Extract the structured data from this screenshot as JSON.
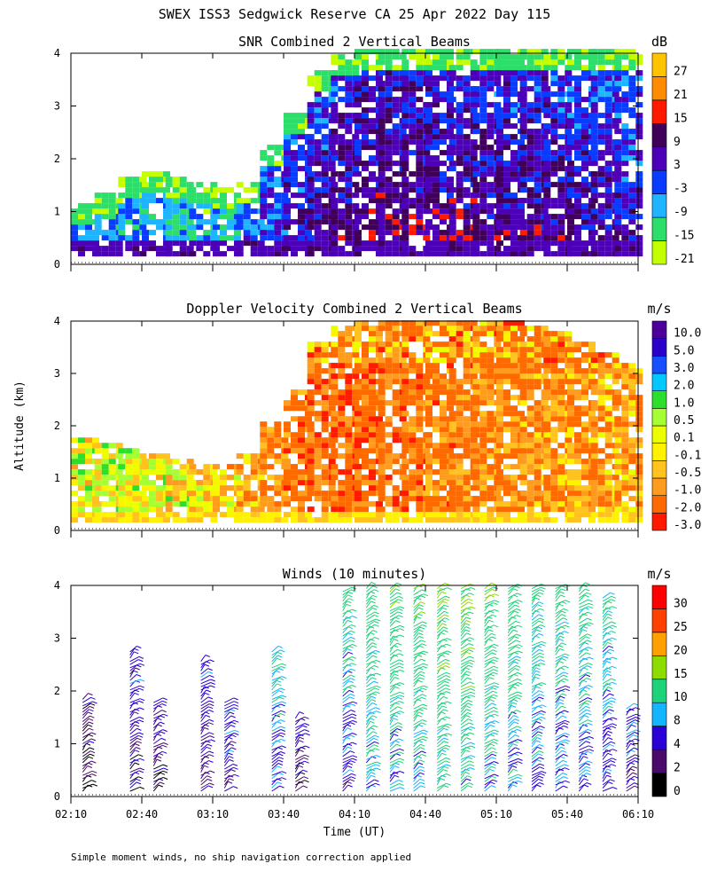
{
  "figure_title": "SWEX ISS3 Sedgwick Reserve CA  25 Apr 2022 Day 115",
  "ylabel": "Altitude (km)",
  "xlabel": "Time (UT)",
  "footnote": "Simple moment winds, no ship navigation correction applied",
  "x_ticks": [
    "02:10",
    "02:40",
    "03:10",
    "03:40",
    "04:10",
    "04:40",
    "05:10",
    "05:40",
    "06:10"
  ],
  "y_ticks": [
    "0",
    "1",
    "2",
    "3",
    "4"
  ],
  "colors": {
    "snr": [
      "#c4ff00",
      "#2ddf6a",
      "#1fb4ff",
      "#0a3cff",
      "#4c00b8",
      "#40005a",
      "#ff1a00",
      "#ff8c00",
      "#ffc400"
    ],
    "doppler": [
      "#ff1a00",
      "#ff6a00",
      "#ff9c1e",
      "#ffc21e",
      "#fff200",
      "#ecff00",
      "#a6ff32",
      "#2ddf2d",
      "#00c8ff",
      "#1450ff",
      "#2a00c8",
      "#4c0099",
      "#3a0040"
    ],
    "winds": [
      "#000000",
      "#4a0a6a",
      "#2a00d4",
      "#14b4ff",
      "#1ed27a",
      "#8cdc00",
      "#ffa000",
      "#ff4000",
      "#ff0000"
    ]
  },
  "chart_data": [
    {
      "type": "heatmap",
      "title": "SNR Combined 2 Vertical Beams",
      "units": "dB",
      "ylim": [
        0,
        4
      ],
      "colorbar_labels": [
        "-21",
        "-15",
        "-9",
        "-3",
        "3",
        "9",
        "15",
        "21",
        "27"
      ],
      "colorbar_values": [
        -21,
        -15,
        -9,
        -3,
        3,
        9,
        15,
        21,
        27
      ],
      "columns": [
        {
          "t": "02:10",
          "top_km": 1.1,
          "mean": -6
        },
        {
          "t": "02:20",
          "top_km": 1.3,
          "mean": -8
        },
        {
          "t": "02:30",
          "top_km": 1.6,
          "mean": -9
        },
        {
          "t": "02:40",
          "top_km": 1.7,
          "mean": -10
        },
        {
          "t": "02:50",
          "top_km": 1.6,
          "mean": -11
        },
        {
          "t": "03:00",
          "top_km": 1.5,
          "mean": -11
        },
        {
          "t": "03:10",
          "top_km": 1.4,
          "mean": -10
        },
        {
          "t": "03:20",
          "top_km": 1.5,
          "mean": -6
        },
        {
          "t": "03:30",
          "top_km": 2.2,
          "mean": -2
        },
        {
          "t": "03:40",
          "top_km": 2.8,
          "mean": 2
        },
        {
          "t": "03:50",
          "top_km": 3.6,
          "mean": 4
        },
        {
          "t": "04:00",
          "top_km": 3.9,
          "mean": 6
        },
        {
          "t": "04:10",
          "top_km": 4.0,
          "mean": 7
        },
        {
          "t": "04:20",
          "top_km": 4.0,
          "mean": 8
        },
        {
          "t": "04:30",
          "top_km": 4.0,
          "mean": 8
        },
        {
          "t": "04:40",
          "top_km": 4.0,
          "mean": 7
        },
        {
          "t": "04:50",
          "top_km": 4.0,
          "mean": 7
        },
        {
          "t": "05:00",
          "top_km": 4.0,
          "mean": 6
        },
        {
          "t": "05:10",
          "top_km": 4.0,
          "mean": 6
        },
        {
          "t": "05:20",
          "top_km": 4.0,
          "mean": 6
        },
        {
          "t": "05:30",
          "top_km": 4.0,
          "mean": 5
        },
        {
          "t": "05:40",
          "top_km": 4.0,
          "mean": 4
        },
        {
          "t": "05:50",
          "top_km": 4.0,
          "mean": 3
        },
        {
          "t": "06:00",
          "top_km": 4.0,
          "mean": 2
        }
      ]
    },
    {
      "type": "heatmap",
      "title": "Doppler Velocity Combined 2 Vertical Beams",
      "units": "m/s",
      "ylim": [
        0,
        4
      ],
      "colorbar_labels": [
        "-3.0",
        "-2.0",
        "-1.0",
        "-0.5",
        "-0.1",
        "0.1",
        "0.5",
        "1.0",
        "2.0",
        "3.0",
        "5.0",
        "10.0"
      ],
      "colorbar_values": [
        -3.0,
        -2.0,
        -1.0,
        -0.5,
        -0.1,
        0.1,
        0.5,
        1.0,
        2.0,
        3.0,
        5.0,
        10.0
      ],
      "columns": [
        {
          "t": "02:10",
          "top_km": 1.7,
          "mean": 0.3
        },
        {
          "t": "02:20",
          "top_km": 1.6,
          "mean": 0.4
        },
        {
          "t": "02:30",
          "top_km": 1.5,
          "mean": 0.4
        },
        {
          "t": "02:40",
          "top_km": 1.4,
          "mean": 0.3
        },
        {
          "t": "02:50",
          "top_km": 1.3,
          "mean": 0.2
        },
        {
          "t": "03:00",
          "top_km": 1.2,
          "mean": 0.0
        },
        {
          "t": "03:10",
          "top_km": 1.2,
          "mean": -0.2
        },
        {
          "t": "03:20",
          "top_km": 1.4,
          "mean": -0.6
        },
        {
          "t": "03:30",
          "top_km": 2.0,
          "mean": -1.0
        },
        {
          "t": "03:40",
          "top_km": 2.6,
          "mean": -1.3
        },
        {
          "t": "03:50",
          "top_km": 3.6,
          "mean": -1.4
        },
        {
          "t": "04:00",
          "top_km": 3.9,
          "mean": -1.5
        },
        {
          "t": "04:10",
          "top_km": 4.0,
          "mean": -1.5
        },
        {
          "t": "04:20",
          "top_km": 4.0,
          "mean": -1.4
        },
        {
          "t": "04:30",
          "top_km": 4.0,
          "mean": -1.3
        },
        {
          "t": "04:40",
          "top_km": 4.0,
          "mean": -1.2
        },
        {
          "t": "04:50",
          "top_km": 4.0,
          "mean": -1.2
        },
        {
          "t": "05:00",
          "top_km": 4.0,
          "mean": -1.0
        },
        {
          "t": "05:10",
          "top_km": 4.0,
          "mean": -1.0
        },
        {
          "t": "05:20",
          "top_km": 3.9,
          "mean": -0.9
        },
        {
          "t": "05:30",
          "top_km": 3.8,
          "mean": -0.8
        },
        {
          "t": "05:40",
          "top_km": 3.6,
          "mean": -0.8
        },
        {
          "t": "05:50",
          "top_km": 3.4,
          "mean": -0.7
        },
        {
          "t": "06:00",
          "top_km": 3.2,
          "mean": -0.6
        }
      ]
    },
    {
      "type": "barbs",
      "title": "Winds (10 minutes)",
      "units": "m/s",
      "ylim": [
        0,
        4
      ],
      "colorbar_labels": [
        "0",
        "2",
        "4",
        "8",
        "10",
        "15",
        "20",
        "25",
        "30"
      ],
      "colorbar_values": [
        0,
        2,
        4,
        8,
        10,
        15,
        20,
        25,
        30
      ],
      "profiles": [
        {
          "t": "02:15",
          "top_km": 1.9,
          "speed": 4
        },
        {
          "t": "02:35",
          "top_km": 2.8,
          "speed": 5
        },
        {
          "t": "02:45",
          "top_km": 1.8,
          "speed": 5
        },
        {
          "t": "03:05",
          "top_km": 2.6,
          "speed": 6
        },
        {
          "t": "03:15",
          "top_km": 1.8,
          "speed": 7
        },
        {
          "t": "03:35",
          "top_km": 2.8,
          "speed": 9
        },
        {
          "t": "03:45",
          "top_km": 1.5,
          "speed": 5
        },
        {
          "t": "04:05",
          "top_km": 3.9,
          "speed": 8
        },
        {
          "t": "04:15",
          "top_km": 4.0,
          "speed": 10
        },
        {
          "t": "04:25",
          "top_km": 4.0,
          "speed": 10
        },
        {
          "t": "04:35",
          "top_km": 4.0,
          "speed": 11
        },
        {
          "t": "04:45",
          "top_km": 4.0,
          "speed": 12
        },
        {
          "t": "04:55",
          "top_km": 4.0,
          "speed": 12
        },
        {
          "t": "05:05",
          "top_km": 4.0,
          "speed": 11
        },
        {
          "t": "05:15",
          "top_km": 4.0,
          "speed": 10
        },
        {
          "t": "05:25",
          "top_km": 4.0,
          "speed": 9
        },
        {
          "t": "05:35",
          "top_km": 4.0,
          "speed": 9
        },
        {
          "t": "05:45",
          "top_km": 4.0,
          "speed": 9
        },
        {
          "t": "05:55",
          "top_km": 3.8,
          "speed": 8
        },
        {
          "t": "06:05",
          "top_km": 1.7,
          "speed": 7
        }
      ]
    }
  ]
}
